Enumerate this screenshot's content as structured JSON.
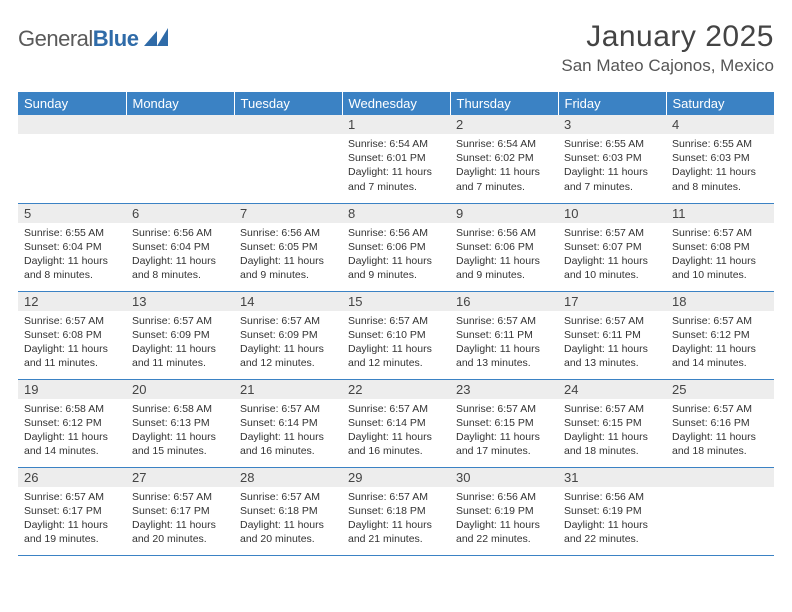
{
  "brand": {
    "part1": "General",
    "part2": "Blue"
  },
  "title": "January 2025",
  "location": "San Mateo Cajonos, Mexico",
  "colors": {
    "header_bg": "#3b82c4",
    "header_text": "#ffffff",
    "daynum_bg": "#ededed",
    "border": "#3b82c4",
    "logo_accent": "#2f6ba8"
  },
  "weekdays": [
    "Sunday",
    "Monday",
    "Tuesday",
    "Wednesday",
    "Thursday",
    "Friday",
    "Saturday"
  ],
  "weeks": [
    [
      {
        "num": "",
        "sunrise": "",
        "sunset": "",
        "daylight": ""
      },
      {
        "num": "",
        "sunrise": "",
        "sunset": "",
        "daylight": ""
      },
      {
        "num": "",
        "sunrise": "",
        "sunset": "",
        "daylight": ""
      },
      {
        "num": "1",
        "sunrise": "Sunrise: 6:54 AM",
        "sunset": "Sunset: 6:01 PM",
        "daylight": "Daylight: 11 hours and 7 minutes."
      },
      {
        "num": "2",
        "sunrise": "Sunrise: 6:54 AM",
        "sunset": "Sunset: 6:02 PM",
        "daylight": "Daylight: 11 hours and 7 minutes."
      },
      {
        "num": "3",
        "sunrise": "Sunrise: 6:55 AM",
        "sunset": "Sunset: 6:03 PM",
        "daylight": "Daylight: 11 hours and 7 minutes."
      },
      {
        "num": "4",
        "sunrise": "Sunrise: 6:55 AM",
        "sunset": "Sunset: 6:03 PM",
        "daylight": "Daylight: 11 hours and 8 minutes."
      }
    ],
    [
      {
        "num": "5",
        "sunrise": "Sunrise: 6:55 AM",
        "sunset": "Sunset: 6:04 PM",
        "daylight": "Daylight: 11 hours and 8 minutes."
      },
      {
        "num": "6",
        "sunrise": "Sunrise: 6:56 AM",
        "sunset": "Sunset: 6:04 PM",
        "daylight": "Daylight: 11 hours and 8 minutes."
      },
      {
        "num": "7",
        "sunrise": "Sunrise: 6:56 AM",
        "sunset": "Sunset: 6:05 PM",
        "daylight": "Daylight: 11 hours and 9 minutes."
      },
      {
        "num": "8",
        "sunrise": "Sunrise: 6:56 AM",
        "sunset": "Sunset: 6:06 PM",
        "daylight": "Daylight: 11 hours and 9 minutes."
      },
      {
        "num": "9",
        "sunrise": "Sunrise: 6:56 AM",
        "sunset": "Sunset: 6:06 PM",
        "daylight": "Daylight: 11 hours and 9 minutes."
      },
      {
        "num": "10",
        "sunrise": "Sunrise: 6:57 AM",
        "sunset": "Sunset: 6:07 PM",
        "daylight": "Daylight: 11 hours and 10 minutes."
      },
      {
        "num": "11",
        "sunrise": "Sunrise: 6:57 AM",
        "sunset": "Sunset: 6:08 PM",
        "daylight": "Daylight: 11 hours and 10 minutes."
      }
    ],
    [
      {
        "num": "12",
        "sunrise": "Sunrise: 6:57 AM",
        "sunset": "Sunset: 6:08 PM",
        "daylight": "Daylight: 11 hours and 11 minutes."
      },
      {
        "num": "13",
        "sunrise": "Sunrise: 6:57 AM",
        "sunset": "Sunset: 6:09 PM",
        "daylight": "Daylight: 11 hours and 11 minutes."
      },
      {
        "num": "14",
        "sunrise": "Sunrise: 6:57 AM",
        "sunset": "Sunset: 6:09 PM",
        "daylight": "Daylight: 11 hours and 12 minutes."
      },
      {
        "num": "15",
        "sunrise": "Sunrise: 6:57 AM",
        "sunset": "Sunset: 6:10 PM",
        "daylight": "Daylight: 11 hours and 12 minutes."
      },
      {
        "num": "16",
        "sunrise": "Sunrise: 6:57 AM",
        "sunset": "Sunset: 6:11 PM",
        "daylight": "Daylight: 11 hours and 13 minutes."
      },
      {
        "num": "17",
        "sunrise": "Sunrise: 6:57 AM",
        "sunset": "Sunset: 6:11 PM",
        "daylight": "Daylight: 11 hours and 13 minutes."
      },
      {
        "num": "18",
        "sunrise": "Sunrise: 6:57 AM",
        "sunset": "Sunset: 6:12 PM",
        "daylight": "Daylight: 11 hours and 14 minutes."
      }
    ],
    [
      {
        "num": "19",
        "sunrise": "Sunrise: 6:58 AM",
        "sunset": "Sunset: 6:12 PM",
        "daylight": "Daylight: 11 hours and 14 minutes."
      },
      {
        "num": "20",
        "sunrise": "Sunrise: 6:58 AM",
        "sunset": "Sunset: 6:13 PM",
        "daylight": "Daylight: 11 hours and 15 minutes."
      },
      {
        "num": "21",
        "sunrise": "Sunrise: 6:57 AM",
        "sunset": "Sunset: 6:14 PM",
        "daylight": "Daylight: 11 hours and 16 minutes."
      },
      {
        "num": "22",
        "sunrise": "Sunrise: 6:57 AM",
        "sunset": "Sunset: 6:14 PM",
        "daylight": "Daylight: 11 hours and 16 minutes."
      },
      {
        "num": "23",
        "sunrise": "Sunrise: 6:57 AM",
        "sunset": "Sunset: 6:15 PM",
        "daylight": "Daylight: 11 hours and 17 minutes."
      },
      {
        "num": "24",
        "sunrise": "Sunrise: 6:57 AM",
        "sunset": "Sunset: 6:15 PM",
        "daylight": "Daylight: 11 hours and 18 minutes."
      },
      {
        "num": "25",
        "sunrise": "Sunrise: 6:57 AM",
        "sunset": "Sunset: 6:16 PM",
        "daylight": "Daylight: 11 hours and 18 minutes."
      }
    ],
    [
      {
        "num": "26",
        "sunrise": "Sunrise: 6:57 AM",
        "sunset": "Sunset: 6:17 PM",
        "daylight": "Daylight: 11 hours and 19 minutes."
      },
      {
        "num": "27",
        "sunrise": "Sunrise: 6:57 AM",
        "sunset": "Sunset: 6:17 PM",
        "daylight": "Daylight: 11 hours and 20 minutes."
      },
      {
        "num": "28",
        "sunrise": "Sunrise: 6:57 AM",
        "sunset": "Sunset: 6:18 PM",
        "daylight": "Daylight: 11 hours and 20 minutes."
      },
      {
        "num": "29",
        "sunrise": "Sunrise: 6:57 AM",
        "sunset": "Sunset: 6:18 PM",
        "daylight": "Daylight: 11 hours and 21 minutes."
      },
      {
        "num": "30",
        "sunrise": "Sunrise: 6:56 AM",
        "sunset": "Sunset: 6:19 PM",
        "daylight": "Daylight: 11 hours and 22 minutes."
      },
      {
        "num": "31",
        "sunrise": "Sunrise: 6:56 AM",
        "sunset": "Sunset: 6:19 PM",
        "daylight": "Daylight: 11 hours and 22 minutes."
      },
      {
        "num": "",
        "sunrise": "",
        "sunset": "",
        "daylight": ""
      }
    ]
  ]
}
